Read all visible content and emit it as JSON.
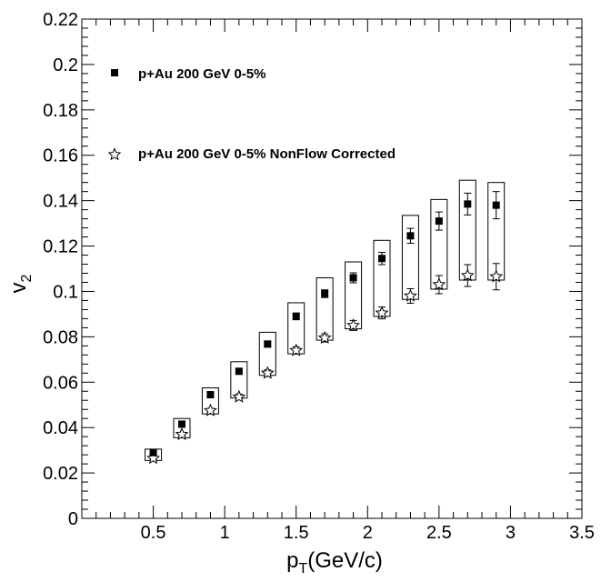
{
  "chart_data": {
    "type": "scatter",
    "xlabel": "p",
    "xlabel_sub": "T",
    "xlabel_unit": "(GeV/c)",
    "ylabel": "v",
    "ylabel_sub": "2",
    "xlim": [
      0,
      3.5
    ],
    "ylim": [
      0,
      0.22
    ],
    "xticks": [
      0.5,
      1,
      1.5,
      2,
      2.5,
      3,
      3.5
    ],
    "xtick_labels": [
      "0.5",
      "1",
      "1.5",
      "2",
      "2.5",
      "3",
      "3.5"
    ],
    "yticks": [
      0,
      0.02,
      0.04,
      0.06,
      0.08,
      0.1,
      0.12,
      0.14,
      0.16,
      0.18,
      0.2,
      0.22
    ],
    "ytick_labels": [
      "0",
      "0.02",
      "0.04",
      "0.06",
      "0.08",
      "0.1",
      "0.12",
      "0.14",
      "0.16",
      "0.18",
      "0.2",
      "0.22"
    ],
    "grid": false,
    "legend_position": "top-left",
    "series": [
      {
        "name": "p+Au 200 GeV 0-5%",
        "marker": "filled-square",
        "color": "#000000",
        "x": [
          0.5,
          0.7,
          0.9,
          1.1,
          1.3,
          1.5,
          1.7,
          1.9,
          2.1,
          2.3,
          2.5,
          2.7,
          2.9
        ],
        "y": [
          0.029,
          0.0415,
          0.0545,
          0.0648,
          0.0768,
          0.089,
          0.099,
          0.106,
          0.1145,
          0.1245,
          0.131,
          0.1385,
          0.138
        ],
        "yerr": [
          0.0005,
          0.0007,
          0.0009,
          0.0011,
          0.0013,
          0.0015,
          0.0017,
          0.0022,
          0.0027,
          0.0033,
          0.004,
          0.0048,
          0.006
        ]
      },
      {
        "name": "p+Au 200 GeV 0-5% NonFlow Corrected",
        "marker": "open-star",
        "color": "#000000",
        "x": [
          0.5,
          0.7,
          0.9,
          1.1,
          1.3,
          1.5,
          1.7,
          1.9,
          2.1,
          2.3,
          2.5,
          2.7,
          2.9
        ],
        "y": [
          0.0265,
          0.037,
          0.0475,
          0.0535,
          0.064,
          0.074,
          0.0795,
          0.085,
          0.0905,
          0.098,
          0.103,
          0.107,
          0.1065
        ],
        "yerr": [
          0.0006,
          0.0008,
          0.001,
          0.0012,
          0.0014,
          0.0016,
          0.0018,
          0.0022,
          0.0026,
          0.0032,
          0.004,
          0.0048,
          0.0058
        ],
        "sys_low": [
          0.0255,
          0.0355,
          0.046,
          0.053,
          0.063,
          0.0725,
          0.0785,
          0.0835,
          0.089,
          0.0965,
          0.101,
          0.105,
          0.105
        ],
        "sys_high": [
          0.0305,
          0.044,
          0.0575,
          0.069,
          0.082,
          0.095,
          0.106,
          0.113,
          0.1225,
          0.1335,
          0.1405,
          0.149,
          0.148
        ]
      }
    ]
  }
}
